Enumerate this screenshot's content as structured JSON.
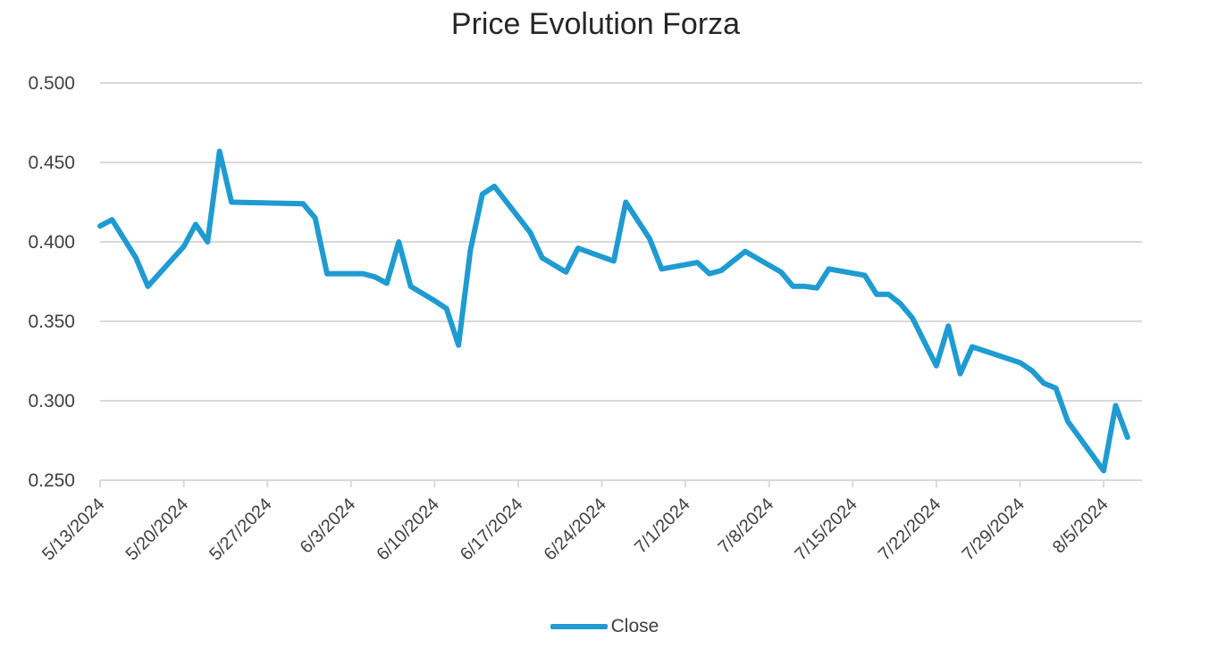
{
  "chart_data": {
    "type": "line",
    "title": "Price Evolution Forza",
    "xlabel": "",
    "ylabel": "",
    "ylim": [
      0.25,
      0.5
    ],
    "y_ticks": [
      "0.250",
      "0.300",
      "0.350",
      "0.400",
      "0.450",
      "0.500"
    ],
    "x_ticks": [
      "5/13/2024",
      "5/20/2024",
      "5/27/2024",
      "6/3/2024",
      "6/10/2024",
      "6/17/2024",
      "6/24/2024",
      "7/1/2024",
      "7/8/2024",
      "7/15/2024",
      "7/22/2024",
      "7/29/2024",
      "8/5/2024"
    ],
    "x_range": [
      "2024-05-13",
      "2024-08-07"
    ],
    "grid": true,
    "legend_position": "bottom",
    "series": [
      {
        "name": "Close",
        "color": "#1f9bd1",
        "points": [
          [
            "2024-05-13",
            0.41
          ],
          [
            "2024-05-14",
            0.414
          ],
          [
            "2024-05-16",
            0.39
          ],
          [
            "2024-05-17",
            0.372
          ],
          [
            "2024-05-20",
            0.397
          ],
          [
            "2024-05-21",
            0.411
          ],
          [
            "2024-05-22",
            0.4
          ],
          [
            "2024-05-23",
            0.457
          ],
          [
            "2024-05-24",
            0.425
          ],
          [
            "2024-05-30",
            0.424
          ],
          [
            "2024-05-31",
            0.415
          ],
          [
            "2024-06-01",
            0.38
          ],
          [
            "2024-06-04",
            0.38
          ],
          [
            "2024-06-05",
            0.378
          ],
          [
            "2024-06-06",
            0.374
          ],
          [
            "2024-06-07",
            0.4
          ],
          [
            "2024-06-08",
            0.372
          ],
          [
            "2024-06-10",
            0.363
          ],
          [
            "2024-06-11",
            0.358
          ],
          [
            "2024-06-12",
            0.335
          ],
          [
            "2024-06-13",
            0.395
          ],
          [
            "2024-06-14",
            0.43
          ],
          [
            "2024-06-15",
            0.435
          ],
          [
            "2024-06-18",
            0.406
          ],
          [
            "2024-06-19",
            0.39
          ],
          [
            "2024-06-21",
            0.381
          ],
          [
            "2024-06-22",
            0.396
          ],
          [
            "2024-06-25",
            0.388
          ],
          [
            "2024-06-26",
            0.425
          ],
          [
            "2024-06-28",
            0.402
          ],
          [
            "2024-06-29",
            0.383
          ],
          [
            "2024-07-02",
            0.387
          ],
          [
            "2024-07-03",
            0.38
          ],
          [
            "2024-07-04",
            0.382
          ],
          [
            "2024-07-06",
            0.394
          ],
          [
            "2024-07-09",
            0.381
          ],
          [
            "2024-07-10",
            0.372
          ],
          [
            "2024-07-11",
            0.372
          ],
          [
            "2024-07-12",
            0.371
          ],
          [
            "2024-07-13",
            0.383
          ],
          [
            "2024-07-16",
            0.379
          ],
          [
            "2024-07-17",
            0.367
          ],
          [
            "2024-07-18",
            0.367
          ],
          [
            "2024-07-19",
            0.361
          ],
          [
            "2024-07-20",
            0.352
          ],
          [
            "2024-07-21",
            0.337
          ],
          [
            "2024-07-22",
            0.322
          ],
          [
            "2024-07-23",
            0.347
          ],
          [
            "2024-07-24",
            0.317
          ],
          [
            "2024-07-25",
            0.334
          ],
          [
            "2024-07-29",
            0.324
          ],
          [
            "2024-07-30",
            0.319
          ],
          [
            "2024-07-31",
            0.311
          ],
          [
            "2024-08-01",
            0.308
          ],
          [
            "2024-08-02",
            0.287
          ],
          [
            "2024-08-05",
            0.256
          ],
          [
            "2024-08-06",
            0.297
          ],
          [
            "2024-08-07",
            0.277
          ]
        ]
      }
    ]
  }
}
